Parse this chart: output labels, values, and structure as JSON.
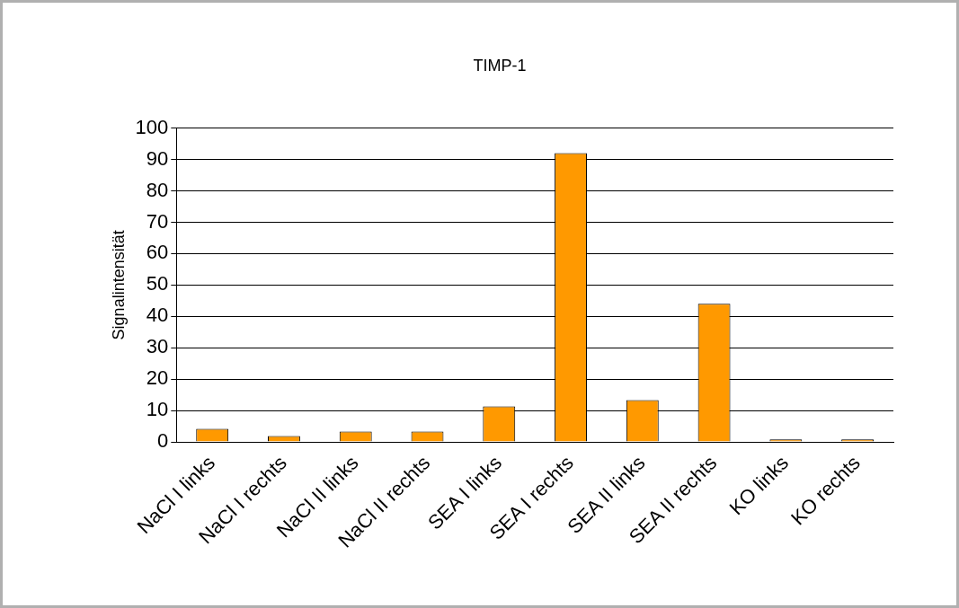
{
  "chart_data": {
    "type": "bar",
    "title": "TIMP-1",
    "ylabel": "Signalintensität",
    "categories": [
      "NaCl I links",
      "NaCl I rechts",
      "NaCl II links",
      "NaCl II rechts",
      "SEA I links",
      "SEA I rechts",
      "SEA II links",
      "SEA II rechts",
      "KO links",
      "KO rechts"
    ],
    "values": [
      4.2,
      1.9,
      3.3,
      3.3,
      11.3,
      92,
      13.3,
      44,
      0.8,
      0.8
    ],
    "color": "#ff9900",
    "ylim": [
      0,
      100
    ],
    "yticks": [
      0,
      10,
      20,
      30,
      40,
      50,
      60,
      70,
      80,
      90,
      100
    ],
    "grid": "y",
    "legend": false
  }
}
